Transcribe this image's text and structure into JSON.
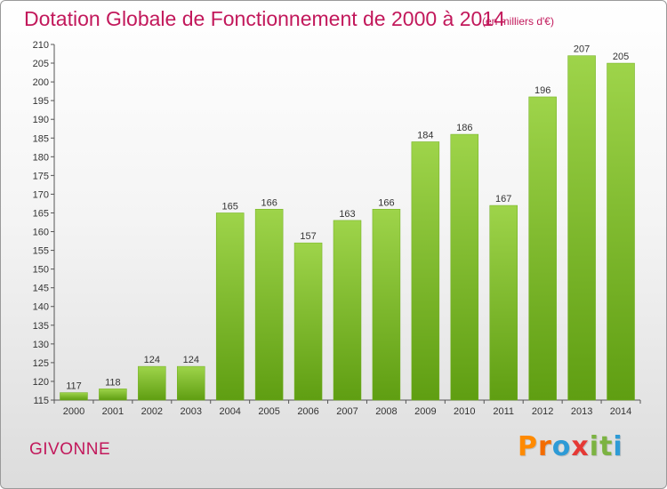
{
  "header": {
    "title": "Dotation Globale de Fonctionnement de 2000 à 2014",
    "subtitle": "(en milliers d'€)"
  },
  "footer": {
    "commune": "GIVONNE",
    "logo_letters": [
      "P",
      "r",
      "o",
      "x",
      "i",
      "t",
      "i"
    ]
  },
  "colors": {
    "accent": "#c2185b",
    "bar_light": "#9ed44a",
    "bar_dark": "#5f9e12",
    "logo": [
      "#ff8a00",
      "#f36c00",
      "#2e9bd6",
      "#e53935",
      "#7cb342",
      "#7cb342",
      "#2e9bd6"
    ]
  },
  "chart_data": {
    "type": "bar",
    "title": "Dotation Globale de Fonctionnement de 2000 à 2014",
    "subtitle": "(en milliers d'€)",
    "categories": [
      "2000",
      "2001",
      "2002",
      "2003",
      "2004",
      "2005",
      "2006",
      "2007",
      "2008",
      "2009",
      "2010",
      "2011",
      "2012",
      "2013",
      "2014"
    ],
    "values": [
      117,
      118,
      124,
      124,
      165,
      166,
      157,
      163,
      166,
      184,
      186,
      167,
      196,
      207,
      205
    ],
    "xlabel": "",
    "ylabel": "",
    "ylim": [
      115,
      210
    ],
    "yticks": [
      115,
      120,
      125,
      130,
      135,
      140,
      145,
      150,
      155,
      160,
      165,
      170,
      175,
      180,
      185,
      190,
      195,
      200,
      205,
      210
    ],
    "grid": false,
    "data_labels": true
  }
}
